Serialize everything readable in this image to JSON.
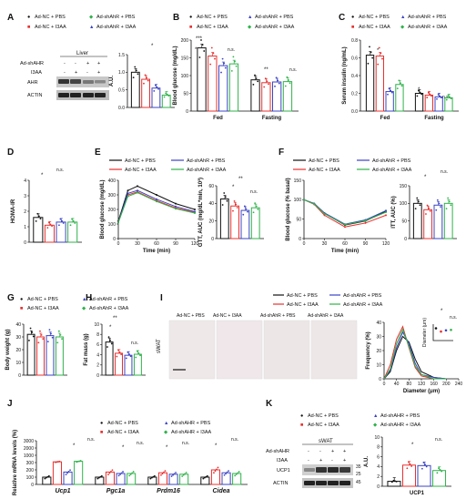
{
  "colors": {
    "nc_pbs": "#111111",
    "nc_i3aa": "#e8302f",
    "sh_pbs": "#3b44c4",
    "sh_i3aa": "#2fb24a"
  },
  "legend": {
    "nc_pbs": "Ad-NC + PBS",
    "nc_i3aa": "Ad-NC + I3AA",
    "sh_pbs": "Ad-shAhR + PBS",
    "sh_i3aa": "Ad-shAhR + I3AA",
    "sh_pbs_upper": "Ad-shAHR + PBS",
    "sh_i3aa_upper": "Ad-shAHR + I3AA"
  },
  "panels": {
    "A": "A",
    "B": "B",
    "C": "C",
    "D": "D",
    "E": "E",
    "F": "F",
    "G": "G",
    "H": "H",
    "I": "I",
    "J": "J",
    "K": "K"
  },
  "sig": {
    "s1": "*",
    "s2": "**",
    "s3": "***",
    "ns": "n.s."
  },
  "blot_A": {
    "tissue": "Liver",
    "row1": "Ad-shAHR",
    "row2": "I3AA",
    "signs1": [
      "-",
      "-",
      "+",
      "+"
    ],
    "signs2": [
      "-",
      "+",
      "-",
      "+"
    ],
    "band1": "AHR",
    "band2": "ACTIN"
  },
  "blot_K": {
    "tissue": "sWAT",
    "row1": "Ad-shAHR",
    "row2": "I3AA",
    "signs1": [
      "-",
      "-",
      "+",
      "+"
    ],
    "signs2": [
      "-",
      "+",
      "-",
      "+"
    ],
    "band1": "UCP1",
    "band2": "ACTIN",
    "mw1": "35",
    "mw2": "25",
    "mw3": "45"
  },
  "micro": {
    "labels": [
      "Ad-NC + PBS",
      "Ad-NC + I3AA",
      "Ad-shAhR + PBS",
      "Ad-shAhR + I3AA"
    ],
    "tissue": "sWAT"
  },
  "chart_data": [
    {
      "id": "A",
      "type": "bar",
      "ylabel": "A.U.",
      "yticks": [
        "0.0",
        "0.5",
        "1.0",
        "1.5"
      ],
      "ylim": [
        0,
        1.5
      ],
      "groups": [
        {
          "values": [
            1.0,
            0.8,
            0.55,
            0.35
          ]
        }
      ]
    },
    {
      "id": "B",
      "type": "bar",
      "ylabel": "Blood glucose (mg/dL)",
      "yticks": [
        "0",
        "50",
        "100",
        "150",
        "200"
      ],
      "ylim": [
        0,
        200
      ],
      "categories": [
        "Fed",
        "Fasting"
      ],
      "groups": [
        {
          "values": [
            178,
            155,
            128,
            133
          ]
        },
        {
          "values": [
            88,
            80,
            82,
            83
          ]
        }
      ]
    },
    {
      "id": "C",
      "type": "bar",
      "ylabel": "Serum insulin (ng/mL)",
      "yticks": [
        "0.0",
        "0.2",
        "0.4",
        "0.6",
        "0.8"
      ],
      "ylim": [
        0,
        0.8
      ],
      "categories": [
        "Fed",
        "Fasting"
      ],
      "groups": [
        {
          "values": [
            0.63,
            0.62,
            0.22,
            0.3
          ]
        },
        {
          "values": [
            0.2,
            0.18,
            0.16,
            0.15
          ]
        }
      ]
    },
    {
      "id": "D",
      "type": "bar",
      "ylabel": "HOMA-IR",
      "yticks": [
        "0",
        "1",
        "2",
        "3",
        "4"
      ],
      "ylim": [
        0,
        4
      ],
      "groups": [
        {
          "values": [
            1.6,
            1.1,
            1.3,
            1.3
          ]
        }
      ]
    },
    {
      "id": "E1",
      "type": "line",
      "ylabel": "Blood glucose (mg/dL)",
      "xlabel": "Time (min)",
      "xticks": [
        "0",
        "30",
        "60",
        "90",
        "120"
      ],
      "yticks": [
        "0",
        "100",
        "200",
        "300",
        "400"
      ],
      "ylim": [
        0,
        400
      ],
      "x": [
        0,
        15,
        30,
        60,
        90,
        120
      ],
      "series": [
        {
          "key": "nc_pbs",
          "values": [
            120,
            330,
            360,
            300,
            240,
            200
          ]
        },
        {
          "key": "nc_i3aa",
          "values": [
            115,
            300,
            320,
            260,
            210,
            180
          ]
        },
        {
          "key": "sh_pbs",
          "values": [
            112,
            310,
            330,
            270,
            220,
            185
          ]
        },
        {
          "key": "sh_i3aa",
          "values": [
            110,
            290,
            315,
            255,
            205,
            175
          ]
        }
      ]
    },
    {
      "id": "E2",
      "type": "bar",
      "ylabel": "GTT, AUC (mg/dL*min, 10³)",
      "yticks": [
        "0",
        "20",
        "40",
        "60"
      ],
      "ylim": [
        0,
        60
      ],
      "groups": [
        {
          "values": [
            45,
            37,
            32,
            35
          ]
        }
      ]
    },
    {
      "id": "F1",
      "type": "line",
      "ylabel": "Blood glucose (% basal)",
      "xlabel": "Time (min)",
      "xticks": [
        "0",
        "30",
        "60",
        "90",
        "120"
      ],
      "yticks": [
        "0",
        "50",
        "100",
        "150"
      ],
      "ylim": [
        0,
        150
      ],
      "x": [
        0,
        15,
        30,
        60,
        90,
        120
      ],
      "series": [
        {
          "key": "nc_pbs",
          "values": [
            100,
            90,
            65,
            35,
            45,
            70
          ]
        },
        {
          "key": "nc_i3aa",
          "values": [
            100,
            88,
            60,
            30,
            40,
            60
          ]
        },
        {
          "key": "sh_pbs",
          "values": [
            100,
            90,
            66,
            37,
            48,
            72
          ]
        },
        {
          "key": "sh_i3aa",
          "values": [
            100,
            89,
            64,
            36,
            46,
            68
          ]
        }
      ]
    },
    {
      "id": "F2",
      "type": "bar",
      "ylabel": "ITT, AUC (%)",
      "yticks": [
        "0",
        "50",
        "100",
        "150"
      ],
      "ylim": [
        0,
        150
      ],
      "groups": [
        {
          "values": [
            100,
            82,
            95,
            100
          ]
        }
      ]
    },
    {
      "id": "G",
      "type": "bar",
      "ylabel": "Body weight (g)",
      "yticks": [
        "0",
        "10",
        "20",
        "30",
        "40"
      ],
      "ylim": [
        0,
        40
      ],
      "groups": [
        {
          "values": [
            32,
            30,
            31,
            30
          ]
        }
      ]
    },
    {
      "id": "H",
      "type": "bar",
      "ylabel": "Fat mass (g)",
      "yticks": [
        "0",
        "2",
        "4",
        "6",
        "8",
        "10"
      ],
      "ylim": [
        0,
        10
      ],
      "groups": [
        {
          "values": [
            6.5,
            4.3,
            3.9,
            4.1
          ]
        }
      ]
    },
    {
      "id": "I",
      "type": "line",
      "ylabel": "Frequency (%)",
      "xlabel": "Diameter (μm)",
      "xticks": [
        "0",
        "40",
        "80",
        "120",
        "160",
        "200",
        "240"
      ],
      "yticks": [
        "0",
        "10",
        "20",
        "30",
        "40"
      ],
      "ylim": [
        0,
        40
      ],
      "series": [
        {
          "key": "nc_pbs",
          "values": [
            [
              0,
              0
            ],
            [
              20,
              5
            ],
            [
              40,
              20
            ],
            [
              60,
              30
            ],
            [
              80,
              26
            ],
            [
              100,
              14
            ],
            [
              120,
              5
            ],
            [
              160,
              1
            ],
            [
              200,
              0
            ]
          ]
        },
        {
          "key": "nc_i3aa",
          "values": [
            [
              0,
              0
            ],
            [
              20,
              10
            ],
            [
              40,
              28
            ],
            [
              60,
              37
            ],
            [
              80,
              22
            ],
            [
              100,
              8
            ],
            [
              120,
              2
            ],
            [
              160,
              0
            ],
            [
              200,
              0
            ]
          ]
        },
        {
          "key": "sh_pbs",
          "values": [
            [
              0,
              0
            ],
            [
              20,
              6
            ],
            [
              40,
              22
            ],
            [
              60,
              33
            ],
            [
              80,
              25
            ],
            [
              100,
              11
            ],
            [
              120,
              3
            ],
            [
              160,
              1
            ],
            [
              200,
              0
            ]
          ]
        },
        {
          "key": "sh_i3aa",
          "values": [
            [
              0,
              0
            ],
            [
              20,
              7
            ],
            [
              40,
              25
            ],
            [
              60,
              35
            ],
            [
              80,
              23
            ],
            [
              100,
              9
            ],
            [
              120,
              3
            ],
            [
              160,
              0
            ],
            [
              200,
              0
            ]
          ]
        }
      ],
      "inset": {
        "ylabel": "Diameter (μm)",
        "yticks": [
          "0",
          "20",
          "40",
          "60",
          "80"
        ],
        "values": [
          60,
          44,
          50,
          52
        ]
      }
    },
    {
      "id": "J",
      "type": "bar",
      "ylabel": "Relative mRNA levels (%)",
      "yticks": [
        "0",
        "100",
        "200",
        "300",
        "1000",
        "2000",
        "3000"
      ],
      "categories": [
        "Ucp1",
        "Pgc1a",
        "Prdm16",
        "Cidea"
      ],
      "groups": [
        {
          "values": [
            100,
            420,
            170,
            500
          ]
        },
        {
          "values": [
            100,
            170,
            150,
            150
          ]
        },
        {
          "values": [
            100,
            160,
            140,
            140
          ]
        },
        {
          "values": [
            100,
            200,
            160,
            150
          ]
        }
      ]
    },
    {
      "id": "K",
      "type": "bar",
      "ylabel": "A.U.",
      "xlabel": "UCP1",
      "yticks": [
        "0",
        "2",
        "4",
        "6",
        "8",
        "10"
      ],
      "ylim": [
        0,
        10
      ],
      "groups": [
        {
          "values": [
            1.0,
            4.3,
            4.2,
            3.2
          ]
        }
      ]
    }
  ]
}
